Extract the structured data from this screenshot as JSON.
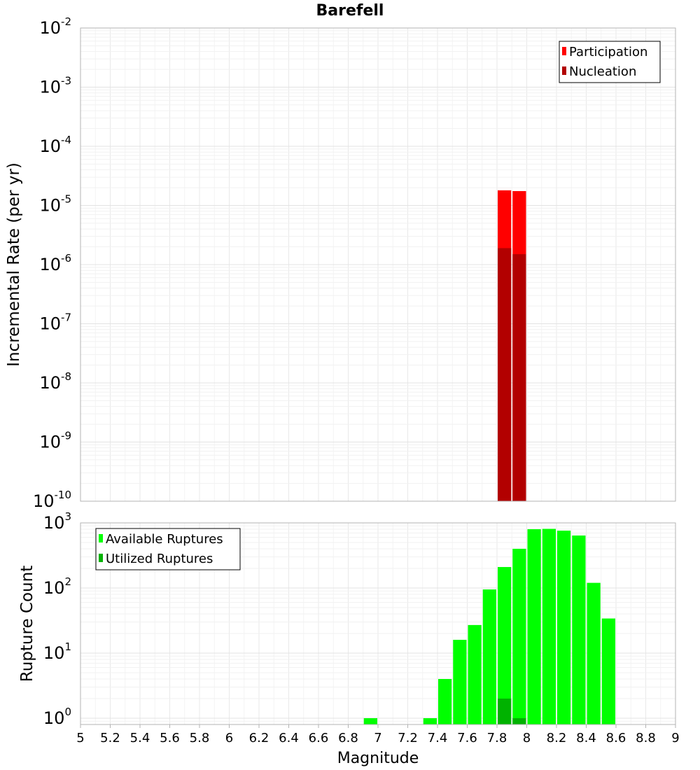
{
  "chart_data": {
    "title": "Barefell",
    "xlabel": "Magnitude",
    "xlim": [
      5,
      9
    ],
    "x_ticks": [
      "5",
      "5.2",
      "5.4",
      "5.6",
      "5.8",
      "6",
      "6.2",
      "6.4",
      "6.6",
      "6.8",
      "7",
      "7.2",
      "7.4",
      "7.6",
      "7.8",
      "8",
      "8.2",
      "8.4",
      "8.6",
      "8.8",
      "9"
    ],
    "bin_width": 0.1,
    "panels": [
      {
        "type": "bar",
        "ylabel": "Incremental Rate (per yr)",
        "yscale": "log",
        "ylim": [
          1e-10,
          0.01
        ],
        "y_ticks": [
          {
            "base": "10",
            "exp": "-2"
          },
          {
            "base": "10",
            "exp": "-3"
          },
          {
            "base": "10",
            "exp": "-4"
          },
          {
            "base": "10",
            "exp": "-5"
          },
          {
            "base": "10",
            "exp": "-6"
          },
          {
            "base": "10",
            "exp": "-7"
          },
          {
            "base": "10",
            "exp": "-8"
          },
          {
            "base": "10",
            "exp": "-9"
          },
          {
            "base": "10",
            "exp": "-10"
          }
        ],
        "legend_position": "top-right",
        "series": [
          {
            "name": "Participation",
            "color": "#ff0000",
            "points": [
              {
                "x": 7.85,
                "y": 1.8e-05
              },
              {
                "x": 7.95,
                "y": 1.75e-05
              }
            ]
          },
          {
            "name": "Nucleation",
            "color": "#b20000",
            "points": [
              {
                "x": 7.85,
                "y": 1.9e-06
              },
              {
                "x": 7.95,
                "y": 1.5e-06
              }
            ]
          }
        ]
      },
      {
        "type": "bar",
        "ylabel": "Rupture Count",
        "yscale": "log",
        "ylim": [
          0.8,
          1000
        ],
        "y_ticks": [
          {
            "base": "10",
            "exp": "3"
          },
          {
            "base": "10",
            "exp": "2"
          },
          {
            "base": "10",
            "exp": "1"
          },
          {
            "base": "10",
            "exp": "0"
          }
        ],
        "legend_position": "top-left",
        "series": [
          {
            "name": "Available Ruptures",
            "color": "#00ff00",
            "points": [
              {
                "x": 6.95,
                "y": 1
              },
              {
                "x": 7.35,
                "y": 1
              },
              {
                "x": 7.45,
                "y": 4
              },
              {
                "x": 7.55,
                "y": 16
              },
              {
                "x": 7.65,
                "y": 27
              },
              {
                "x": 7.75,
                "y": 95
              },
              {
                "x": 7.85,
                "y": 210
              },
              {
                "x": 7.95,
                "y": 400
              },
              {
                "x": 8.05,
                "y": 800
              },
              {
                "x": 8.15,
                "y": 810
              },
              {
                "x": 8.25,
                "y": 760
              },
              {
                "x": 8.35,
                "y": 640
              },
              {
                "x": 8.45,
                "y": 120
              },
              {
                "x": 8.55,
                "y": 34
              }
            ]
          },
          {
            "name": "Utilized Ruptures",
            "color": "#00b200",
            "points": [
              {
                "x": 7.85,
                "y": 2
              },
              {
                "x": 7.95,
                "y": 1
              }
            ]
          }
        ]
      }
    ]
  }
}
